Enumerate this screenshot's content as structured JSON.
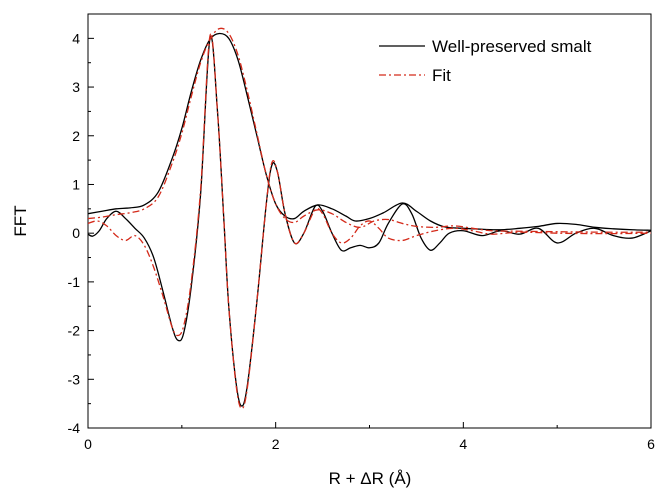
{
  "chart_data": {
    "type": "line",
    "title": "",
    "xlabel": "R + ΔR (Å)",
    "ylabel": "FFT",
    "xlim": [
      0,
      6
    ],
    "ylim": [
      -4,
      4.5
    ],
    "x_ticks": [
      "0",
      "2",
      "4",
      "6"
    ],
    "y_ticks": [
      "-4",
      "-3",
      "-2",
      "-1",
      "0",
      "1",
      "2",
      "3",
      "4"
    ],
    "grid": false,
    "legend_position": "top-right",
    "series": [
      {
        "name": "Well-preserved smalt",
        "color": "#000000",
        "style": "solid",
        "curves": [
          {
            "part": "magnitude",
            "points": [
              [
                0,
                0.4
              ],
              [
                0.15,
                0.45
              ],
              [
                0.3,
                0.5
              ],
              [
                0.45,
                0.52
              ],
              [
                0.6,
                0.58
              ],
              [
                0.75,
                0.85
              ],
              [
                0.9,
                1.55
              ],
              [
                1.0,
                2.15
              ],
              [
                1.1,
                2.9
              ],
              [
                1.2,
                3.55
              ],
              [
                1.3,
                3.98
              ],
              [
                1.4,
                4.1
              ],
              [
                1.5,
                4.0
              ],
              [
                1.6,
                3.55
              ],
              [
                1.7,
                2.8
              ],
              [
                1.8,
                2.0
              ],
              [
                1.9,
                1.2
              ],
              [
                2.0,
                0.6
              ],
              [
                2.1,
                0.35
              ],
              [
                2.2,
                0.3
              ],
              [
                2.3,
                0.45
              ],
              [
                2.45,
                0.58
              ],
              [
                2.6,
                0.5
              ],
              [
                2.75,
                0.35
              ],
              [
                2.85,
                0.25
              ],
              [
                3.0,
                0.3
              ],
              [
                3.15,
                0.42
              ],
              [
                3.35,
                0.62
              ],
              [
                3.5,
                0.45
              ],
              [
                3.65,
                0.25
              ],
              [
                3.8,
                0.13
              ],
              [
                4.0,
                0.1
              ],
              [
                4.2,
                0.08
              ],
              [
                4.4,
                0.07
              ],
              [
                4.6,
                0.1
              ],
              [
                4.8,
                0.14
              ],
              [
                5.0,
                0.2
              ],
              [
                5.2,
                0.18
              ],
              [
                5.4,
                0.12
              ],
              [
                5.6,
                0.09
              ],
              [
                5.8,
                0.07
              ],
              [
                6.0,
                0.06
              ]
            ]
          },
          {
            "part": "imaginary",
            "points": [
              [
                0,
                -0.02
              ],
              [
                0.05,
                -0.06
              ],
              [
                0.12,
                0.05
              ],
              [
                0.2,
                0.3
              ],
              [
                0.3,
                0.45
              ],
              [
                0.4,
                0.3
              ],
              [
                0.5,
                0.1
              ],
              [
                0.6,
                -0.1
              ],
              [
                0.7,
                -0.5
              ],
              [
                0.8,
                -1.2
              ],
              [
                0.9,
                -1.95
              ],
              [
                0.96,
                -2.2
              ],
              [
                1.02,
                -2.05
              ],
              [
                1.1,
                -1.1
              ],
              [
                1.2,
                0.8
              ],
              [
                1.3,
                4.0
              ],
              [
                1.38,
                2.5
              ],
              [
                1.45,
                0.2
              ],
              [
                1.5,
                -1.5
              ],
              [
                1.58,
                -3.1
              ],
              [
                1.64,
                -3.55
              ],
              [
                1.7,
                -3.1
              ],
              [
                1.8,
                -1.4
              ],
              [
                1.9,
                0.6
              ],
              [
                1.96,
                1.4
              ],
              [
                2.02,
                1.25
              ],
              [
                2.1,
                0.4
              ],
              [
                2.2,
                -0.2
              ],
              [
                2.3,
                0.0
              ],
              [
                2.42,
                0.55
              ],
              [
                2.5,
                0.45
              ],
              [
                2.6,
                0.0
              ],
              [
                2.7,
                -0.35
              ],
              [
                2.8,
                -0.3
              ],
              [
                2.9,
                -0.25
              ],
              [
                3.0,
                -0.3
              ],
              [
                3.1,
                -0.2
              ],
              [
                3.2,
                0.2
              ],
              [
                3.35,
                0.6
              ],
              [
                3.45,
                0.4
              ],
              [
                3.55,
                -0.1
              ],
              [
                3.65,
                -0.35
              ],
              [
                3.75,
                -0.2
              ],
              [
                3.85,
                0.0
              ],
              [
                4.0,
                0.05
              ],
              [
                4.2,
                -0.05
              ],
              [
                4.4,
                0.05
              ],
              [
                4.6,
                -0.02
              ],
              [
                4.8,
                0.1
              ],
              [
                5.0,
                -0.2
              ],
              [
                5.2,
                0.0
              ],
              [
                5.4,
                0.1
              ],
              [
                5.6,
                -0.05
              ],
              [
                5.8,
                -0.1
              ],
              [
                6.0,
                0.05
              ]
            ]
          }
        ]
      },
      {
        "name": "Fit",
        "color": "#d42a1a",
        "style": "dash-dot",
        "curves": [
          {
            "part": "magnitude",
            "points": [
              [
                0,
                0.3
              ],
              [
                0.15,
                0.33
              ],
              [
                0.3,
                0.38
              ],
              [
                0.45,
                0.42
              ],
              [
                0.6,
                0.5
              ],
              [
                0.75,
                0.75
              ],
              [
                0.9,
                1.45
              ],
              [
                1.0,
                2.05
              ],
              [
                1.1,
                2.8
              ],
              [
                1.2,
                3.5
              ],
              [
                1.3,
                3.98
              ],
              [
                1.4,
                4.2
              ],
              [
                1.5,
                4.1
              ],
              [
                1.6,
                3.65
              ],
              [
                1.7,
                2.9
              ],
              [
                1.8,
                2.05
              ],
              [
                1.9,
                1.2
              ],
              [
                2.0,
                0.6
              ],
              [
                2.1,
                0.3
              ],
              [
                2.2,
                0.22
              ],
              [
                2.3,
                0.35
              ],
              [
                2.45,
                0.48
              ],
              [
                2.6,
                0.4
              ],
              [
                2.75,
                0.22
              ],
              [
                2.9,
                0.12
              ],
              [
                3.05,
                0.25
              ],
              [
                3.2,
                0.28
              ],
              [
                3.35,
                0.2
              ],
              [
                3.5,
                0.14
              ],
              [
                3.7,
                0.12
              ],
              [
                3.9,
                0.15
              ],
              [
                4.1,
                0.1
              ],
              [
                4.3,
                0.05
              ],
              [
                4.6,
                0.04
              ],
              [
                5.0,
                0.03
              ],
              [
                5.5,
                0.02
              ],
              [
                6.0,
                0.02
              ]
            ]
          },
          {
            "part": "imaginary",
            "points": [
              [
                0,
                0.2
              ],
              [
                0.1,
                0.25
              ],
              [
                0.2,
                0.15
              ],
              [
                0.3,
                -0.05
              ],
              [
                0.4,
                -0.15
              ],
              [
                0.5,
                -0.05
              ],
              [
                0.6,
                -0.25
              ],
              [
                0.7,
                -0.7
              ],
              [
                0.8,
                -1.3
              ],
              [
                0.9,
                -1.95
              ],
              [
                0.96,
                -2.1
              ],
              [
                1.02,
                -1.9
              ],
              [
                1.1,
                -1.0
              ],
              [
                1.2,
                0.9
              ],
              [
                1.3,
                4.05
              ],
              [
                1.38,
                2.5
              ],
              [
                1.45,
                0.2
              ],
              [
                1.5,
                -1.5
              ],
              [
                1.58,
                -3.15
              ],
              [
                1.64,
                -3.6
              ],
              [
                1.7,
                -3.15
              ],
              [
                1.8,
                -1.4
              ],
              [
                1.9,
                0.6
              ],
              [
                1.96,
                1.45
              ],
              [
                2.02,
                1.25
              ],
              [
                2.1,
                0.4
              ],
              [
                2.2,
                -0.2
              ],
              [
                2.3,
                0.0
              ],
              [
                2.42,
                0.48
              ],
              [
                2.5,
                0.4
              ],
              [
                2.6,
                0.0
              ],
              [
                2.7,
                -0.2
              ],
              [
                2.8,
                -0.1
              ],
              [
                2.9,
                0.15
              ],
              [
                3.0,
                0.25
              ],
              [
                3.1,
                0.1
              ],
              [
                3.2,
                -0.1
              ],
              [
                3.35,
                -0.15
              ],
              [
                3.5,
                -0.05
              ],
              [
                3.7,
                0.05
              ],
              [
                3.9,
                0.1
              ],
              [
                4.1,
                0.05
              ],
              [
                4.3,
                -0.02
              ],
              [
                4.6,
                0.02
              ],
              [
                5.0,
                0.0
              ],
              [
                5.5,
                -0.01
              ],
              [
                6.0,
                0.0
              ]
            ]
          }
        ]
      }
    ]
  }
}
